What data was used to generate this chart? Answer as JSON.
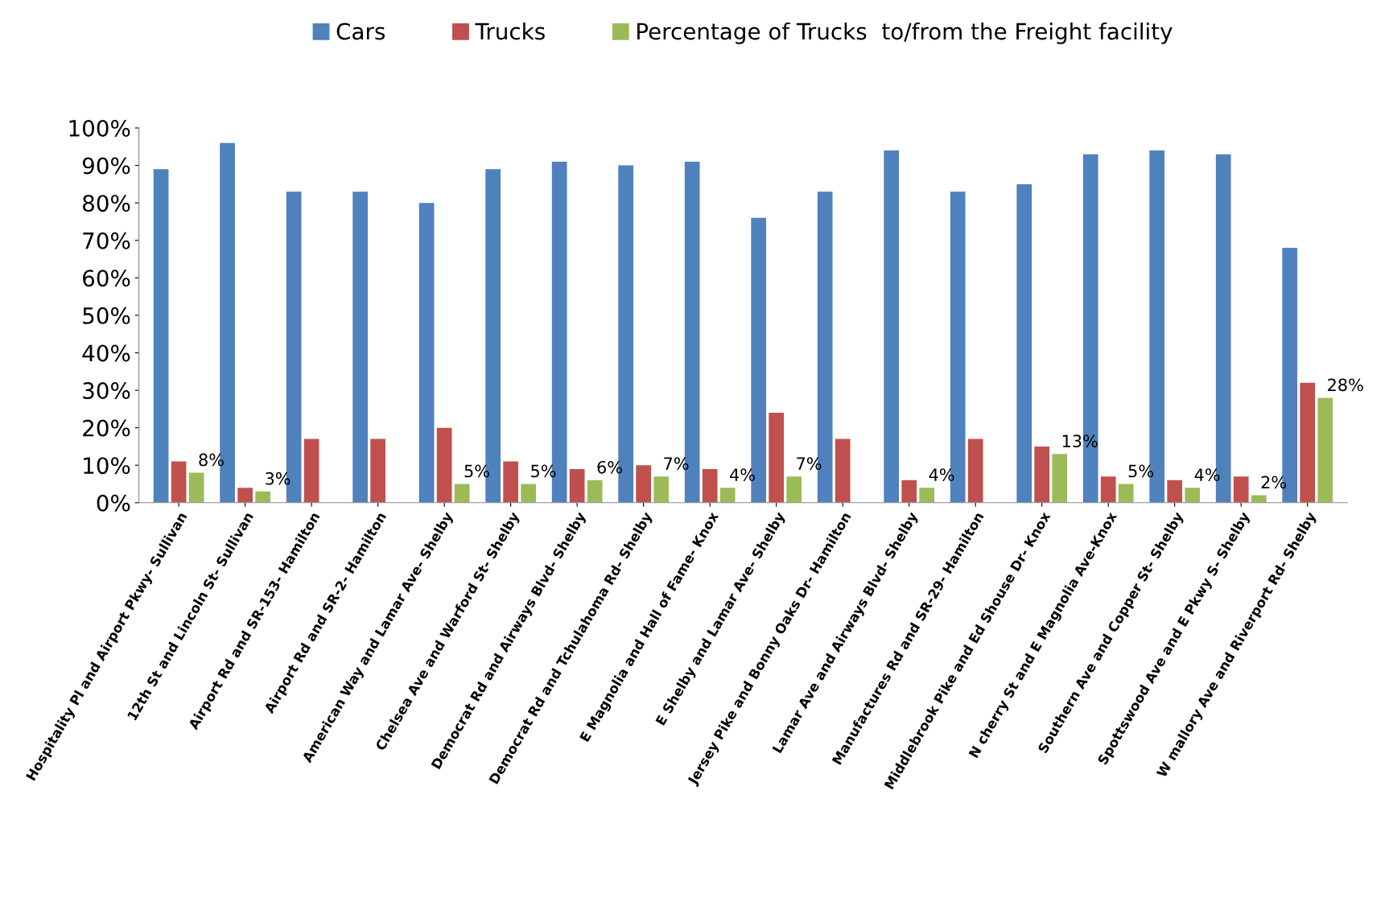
{
  "chart_data": {
    "type": "bar",
    "categories": [
      "Hospitality Pl and Airport Pkwy- Sullivan",
      "12th St and Lincoln St- Sullivan",
      "Airport Rd and SR-153- Hamilton",
      "Airport Rd and SR-2- Hamilton",
      "American Way and Lamar Ave- Shelby",
      "Chelsea Ave and Warford St- Shelby",
      "Democrat Rd and Airways Blvd- Shelby",
      "Democrat Rd and Tchulahoma Rd- Shelby",
      "E Magnolia and Hall of Fame- Knox",
      "E Shelby and Lamar Ave- Shelby",
      "Jersey Pike and Bonny Oaks Dr- Hamilton",
      "Lamar Ave and Airways Blvd- Shelby",
      "Manufactures Rd and SR-29- Hamilton",
      "Middlebrook Pike and Ed Shouse Dr- Knox",
      "N cherry St and E Magnolia Ave-Knox",
      "Southern Ave and Copper St- Shelby",
      "Spottswood Ave and E Pkwy S- Shelby",
      "W mallory Ave and Riverport Rd- Shelby"
    ],
    "series": [
      {
        "name": "Cars",
        "color": "#4f81bd",
        "values": [
          89,
          96,
          83,
          83,
          80,
          89,
          91,
          90,
          91,
          76,
          83,
          94,
          83,
          85,
          93,
          94,
          93,
          68
        ]
      },
      {
        "name": "Trucks",
        "color": "#c0504d",
        "values": [
          11,
          4,
          17,
          17,
          20,
          11,
          9,
          10,
          9,
          24,
          17,
          6,
          17,
          15,
          7,
          6,
          7,
          32
        ]
      },
      {
        "name": "Percentage of Trucks  to/from the Freight facility",
        "color": "#9bbb59",
        "values": [
          8,
          3,
          null,
          null,
          5,
          5,
          6,
          7,
          4,
          7,
          null,
          4,
          null,
          13,
          5,
          4,
          2,
          28
        ],
        "value_labels": [
          "8%",
          "3%",
          null,
          null,
          "5%",
          "5%",
          "6%",
          "7%",
          "4%",
          "7%",
          null,
          "4%",
          null,
          "13%",
          "5%",
          "4%",
          "2%",
          "28%"
        ]
      }
    ],
    "ylim": [
      0,
      100
    ],
    "yticks": [
      {
        "value": 0,
        "label": "0%"
      },
      {
        "value": 10,
        "label": "10%"
      },
      {
        "value": 20,
        "label": "20%"
      },
      {
        "value": 30,
        "label": "30%"
      },
      {
        "value": 40,
        "label": "40%"
      },
      {
        "value": 50,
        "label": "50%"
      },
      {
        "value": 60,
        "label": "60%"
      },
      {
        "value": 70,
        "label": "70%"
      },
      {
        "value": 80,
        "label": "80%"
      },
      {
        "value": 90,
        "label": "90%"
      },
      {
        "value": 100,
        "label": "100%"
      }
    ],
    "grid": false,
    "legend": "top"
  }
}
